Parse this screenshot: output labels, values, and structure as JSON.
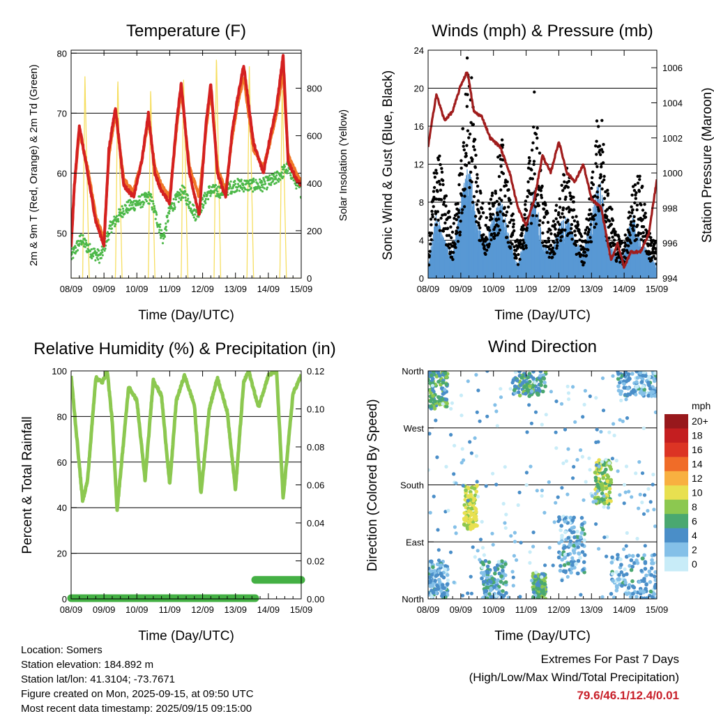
{
  "station": {
    "location": "Location: Somers",
    "elevation": "Station elevation: 184.892 m",
    "latlon": "Station lat/lon: 41.3104; -73.7671",
    "created": "Figure created on Mon, 2025-09-15, at 09:50 UTC",
    "latest": "Most recent data timestamp: 2025/09/15 09:15:00"
  },
  "extremes": {
    "line1": "Extremes For Past 7 Days",
    "line2": "(High/Low/Max Wind/Total Precipitation)",
    "values": "79.6/46.1/12.4/0.01"
  },
  "x_tick_labels": [
    "08/09",
    "09/09",
    "10/09",
    "11/09",
    "12/09",
    "13/09",
    "14/09",
    "15/09"
  ],
  "x_label": "Time (Day/UTC)",
  "colors": {
    "temp_2m": "#d42020",
    "temp_9m": "#f07828",
    "dewpoint": "#4cb848",
    "insolation": "#f6de60",
    "wind": "#5898d4",
    "gust": "#000000",
    "pressure": "#a01c1c",
    "rh": "#8cc850",
    "rain": "#44b044"
  },
  "chart_data": [
    {
      "type": "line",
      "title": "Temperature (F)",
      "xlabel": "Time (Day/UTC)",
      "ylabel": "2m & 9m T (Red, Orange) & 2m Td (Green)",
      "y2label": "Solar Insolation (Yellow)",
      "xlim": [
        0,
        7
      ],
      "ylim": [
        42.5,
        80.5
      ],
      "y2lim": [
        0,
        960
      ],
      "yticks": [
        50,
        60,
        70,
        80
      ],
      "y2ticks": [
        0,
        200,
        400,
        600,
        800
      ],
      "series": [
        {
          "name": "2m T (Red)",
          "axis": "left",
          "x": [
            0,
            0.1,
            0.25,
            0.5,
            0.75,
            1.0,
            1.15,
            1.35,
            1.6,
            1.9,
            2.15,
            2.35,
            2.55,
            2.75,
            3.0,
            3.2,
            3.35,
            3.6,
            3.9,
            4.1,
            4.25,
            4.45,
            4.7,
            4.9,
            5.05,
            5.25,
            5.55,
            5.85,
            6.05,
            6.25,
            6.45,
            6.6,
            6.85,
            7.0
          ],
          "values": [
            47.5,
            58,
            68,
            60,
            52,
            48,
            64,
            71,
            58,
            56,
            62,
            70,
            60,
            57,
            55,
            68,
            75,
            60,
            53,
            68,
            75,
            60,
            56,
            67,
            72,
            78,
            65,
            60,
            66,
            71,
            79.6,
            62,
            59,
            58
          ]
        },
        {
          "name": "9m T (Orange)",
          "axis": "left",
          "x": [
            0,
            0.1,
            0.25,
            0.5,
            0.75,
            1.0,
            1.15,
            1.35,
            1.6,
            1.9,
            2.15,
            2.35,
            2.55,
            2.75,
            3.0,
            3.2,
            3.35,
            3.6,
            3.9,
            4.1,
            4.25,
            4.45,
            4.7,
            4.9,
            5.05,
            5.25,
            5.55,
            5.85,
            6.05,
            6.25,
            6.45,
            6.6,
            6.85,
            7.0
          ],
          "values": [
            48,
            58,
            67,
            61,
            53,
            49,
            63,
            70,
            59,
            57,
            62,
            69,
            61,
            58,
            56,
            67,
            74,
            61,
            56,
            67,
            74,
            61,
            57,
            66,
            71,
            76,
            64,
            61,
            65,
            70,
            77,
            63,
            60,
            58.5
          ]
        },
        {
          "name": "2m Td (Green)",
          "axis": "left",
          "x": [
            0,
            0.3,
            0.6,
            0.9,
            1.2,
            1.6,
            2.0,
            2.4,
            2.8,
            3.0,
            3.4,
            3.8,
            4.2,
            4.6,
            5.0,
            5.4,
            5.8,
            6.2,
            6.6,
            7.0
          ],
          "values": [
            46,
            49,
            47,
            46,
            51,
            54,
            55,
            56,
            49,
            54,
            57,
            53,
            57,
            57,
            58,
            58,
            58,
            59,
            61,
            57
          ]
        },
        {
          "name": "Solar Insolation (Yellow)",
          "axis": "right",
          "x": [
            0,
            0.35,
            0.42,
            0.55,
            0.75,
            1.35,
            1.42,
            1.55,
            1.75,
            2.35,
            2.42,
            2.55,
            2.75,
            3.35,
            3.42,
            3.55,
            3.75,
            4.35,
            4.42,
            4.55,
            4.75,
            5.35,
            5.42,
            5.55,
            5.75,
            6.35,
            6.42,
            6.55,
            6.75,
            7.0
          ],
          "values": [
            0,
            0,
            850,
            0,
            0,
            0,
            850,
            0,
            0,
            0,
            800,
            0,
            0,
            0,
            850,
            0,
            0,
            0,
            950,
            0,
            0,
            0,
            900,
            0,
            0,
            0,
            820,
            0,
            0,
            0
          ]
        }
      ]
    },
    {
      "type": "scatter",
      "title": "Winds (mph) & Pressure (mb)",
      "xlabel": "Time (Day/UTC)",
      "ylabel": "Sonic Wind & Gust (Blue, Black)",
      "y2label": "Station Pressure (Maroon)",
      "xlim": [
        0,
        7
      ],
      "ylim": [
        0,
        24
      ],
      "y2lim": [
        994,
        1007
      ],
      "yticks": [
        0,
        4,
        8,
        12,
        16,
        20,
        24
      ],
      "y2ticks": [
        994,
        996,
        998,
        1000,
        1002,
        1004,
        1006
      ],
      "series": [
        {
          "name": "Station Pressure (Maroon)",
          "type": "line",
          "axis": "right",
          "x": [
            0,
            0.25,
            0.5,
            0.75,
            1.0,
            1.2,
            1.4,
            1.65,
            1.9,
            2.2,
            2.5,
            2.75,
            3.0,
            3.25,
            3.5,
            3.75,
            4.0,
            4.25,
            4.5,
            4.75,
            5.0,
            5.3,
            5.6,
            5.8,
            6.0,
            6.2,
            6.5,
            6.75,
            7.0
          ],
          "values": [
            1001.5,
            1004.5,
            1003,
            1003.5,
            1005,
            1005.8,
            1003.5,
            1003.2,
            1002,
            1001.5,
            1000,
            998,
            997,
            998.5,
            1001,
            1000,
            1001.8,
            1000,
            999.5,
            1000.5,
            998.5,
            998,
            995,
            996,
            994.6,
            995.5,
            995.5,
            996.5,
            999.6
          ]
        },
        {
          "name": "Sonic Wind (Blue)",
          "type": "scatter",
          "axis": "left",
          "x": [
            0,
            0.25,
            0.5,
            0.75,
            1.0,
            1.25,
            1.5,
            1.75,
            2.0,
            2.25,
            2.5,
            2.75,
            3.0,
            3.25,
            3.5,
            3.75,
            4.0,
            4.25,
            4.5,
            4.75,
            5.0,
            5.25,
            5.5,
            5.75,
            6.0,
            6.25,
            6.5,
            6.75,
            7.0
          ],
          "values": [
            1,
            5,
            3,
            2,
            6,
            9,
            4,
            3,
            5,
            6,
            3,
            1,
            4,
            7,
            3,
            2,
            4,
            5,
            3,
            2,
            5,
            8,
            3,
            2,
            2,
            5,
            3,
            2,
            1
          ]
        },
        {
          "name": "Gust (Black)",
          "type": "scatter",
          "axis": "left",
          "x": [
            0,
            0.25,
            0.5,
            0.75,
            1.0,
            1.25,
            1.5,
            1.75,
            2.0,
            2.25,
            2.5,
            2.75,
            3.0,
            3.25,
            3.5,
            3.75,
            4.0,
            4.25,
            4.5,
            4.75,
            5.0,
            5.25,
            5.5,
            5.75,
            6.0,
            6.25,
            6.5,
            6.75,
            7.0
          ],
          "values": [
            2,
            12,
            8,
            4,
            10,
            22,
            10,
            5,
            8,
            12,
            7,
            3,
            7,
            16,
            8,
            4,
            7,
            10,
            6,
            3,
            8,
            16,
            8,
            4,
            3,
            8,
            9,
            4,
            3
          ]
        }
      ]
    },
    {
      "type": "line",
      "title": "Relative Humidity (%) & Precipitation (in)",
      "xlabel": "Time (Day/UTC)",
      "ylabel": "Percent & Total Rainfall",
      "xlim": [
        0,
        7
      ],
      "ylim": [
        0,
        100
      ],
      "y2lim": [
        0,
        0.12
      ],
      "yticks": [
        0,
        20,
        40,
        60,
        80,
        100
      ],
      "y2ticks": [
        0.0,
        0.02,
        0.04,
        0.06,
        0.08,
        0.1,
        0.12
      ],
      "series": [
        {
          "name": "Relative Humidity",
          "axis": "left",
          "x": [
            0,
            0.1,
            0.35,
            0.5,
            0.75,
            0.95,
            1.1,
            1.25,
            1.4,
            1.75,
            2.0,
            2.25,
            2.5,
            2.75,
            3.0,
            3.2,
            3.45,
            3.75,
            3.95,
            4.2,
            4.45,
            4.75,
            5.0,
            5.25,
            5.4,
            5.7,
            6.0,
            6.25,
            6.45,
            6.75,
            7.0
          ],
          "values": [
            98,
            82,
            43,
            52,
            97,
            95,
            100,
            78,
            39,
            93,
            87,
            52,
            96,
            89,
            50,
            87,
            98,
            85,
            46,
            83,
            97,
            82,
            48,
            95,
            100,
            84,
            98,
            100,
            44,
            90,
            98
          ]
        },
        {
          "name": "Total Precipitation",
          "axis": "right",
          "type": "step",
          "x": [
            0,
            5.6,
            5.6,
            7.0
          ],
          "values": [
            0.0,
            0.0,
            0.01,
            0.01
          ]
        }
      ]
    },
    {
      "type": "scatter",
      "title": "Wind Direction",
      "xlabel": "Time (Day/UTC)",
      "ylabel": "Direction (Colored By Speed)",
      "xlim": [
        0,
        7
      ],
      "ylim": [
        0,
        360
      ],
      "ytick_labels": [
        "North",
        "East",
        "South",
        "West",
        "North"
      ],
      "ytick_values": [
        0,
        90,
        180,
        270,
        360
      ],
      "colorbar_title": "mph",
      "colorbar_labels": [
        "0",
        "2",
        "4",
        "6",
        "8",
        "10",
        "12",
        "14",
        "16",
        "18",
        "20+"
      ],
      "colorbar_colors": [
        "#c8ecf8",
        "#84c0e8",
        "#4a8ec8",
        "#4aa870",
        "#8cc850",
        "#e8e050",
        "#f8b040",
        "#f06c28",
        "#dc3424",
        "#c41e20",
        "#98181c"
      ],
      "clusters": [
        {
          "x_range": [
            0.0,
            0.6
          ],
          "dir_range": [
            300,
            360
          ],
          "speed": 6
        },
        {
          "x_range": [
            0.0,
            0.6
          ],
          "dir_range": [
            0,
            60
          ],
          "speed": 3
        },
        {
          "x_range": [
            1.1,
            1.5
          ],
          "dir_range": [
            110,
            180
          ],
          "speed": 10
        },
        {
          "x_range": [
            1.6,
            2.4
          ],
          "dir_range": [
            0,
            60
          ],
          "speed": 4
        },
        {
          "x_range": [
            2.6,
            3.6
          ],
          "dir_range": [
            320,
            360
          ],
          "speed": 5
        },
        {
          "x_range": [
            3.2,
            3.6
          ],
          "dir_range": [
            0,
            40
          ],
          "speed": 6
        },
        {
          "x_range": [
            4.0,
            4.8
          ],
          "dir_range": [
            40,
            130
          ],
          "speed": 3
        },
        {
          "x_range": [
            5.1,
            5.6
          ],
          "dir_range": [
            150,
            220
          ],
          "speed": 8
        },
        {
          "x_range": [
            5.6,
            7.0
          ],
          "dir_range": [
            0,
            70
          ],
          "speed": 3
        },
        {
          "x_range": [
            5.8,
            7.0
          ],
          "dir_range": [
            320,
            360
          ],
          "speed": 3
        }
      ]
    }
  ]
}
